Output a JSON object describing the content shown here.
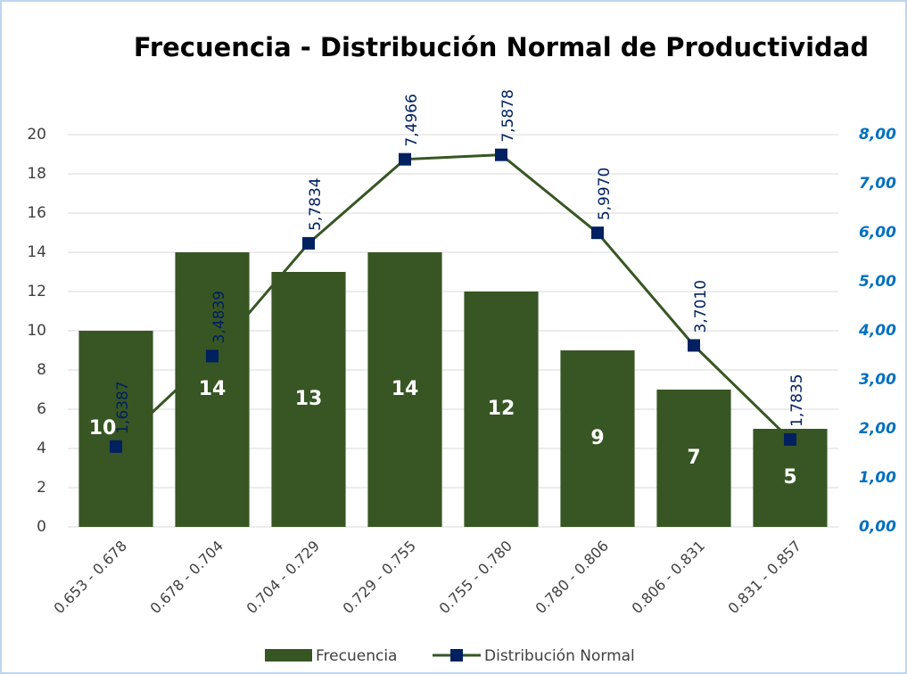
{
  "chart_data": {
    "type": "bar",
    "title": "Frecuencia - Distribución Normal de Productividad",
    "categories": [
      "0.653 - 0.678",
      "0.678 - 0.704",
      "0.704 - 0.729",
      "0.729 - 0.755",
      "0.755 - 0.780",
      "0.780 - 0.806",
      "0.806 - 0.831",
      "0.831 - 0.857"
    ],
    "series": [
      {
        "name": "Frecuencia",
        "type": "bar",
        "color": "#375623",
        "values": [
          10,
          14,
          13,
          14,
          12,
          9,
          7,
          5
        ]
      },
      {
        "name": "Distribución Normal",
        "type": "line",
        "axis": "y2",
        "color": "#375623",
        "marker_color": "#002060",
        "values": [
          1.6387,
          3.4839,
          5.7834,
          7.4966,
          7.5878,
          5.997,
          3.701,
          1.7835
        ],
        "value_labels": [
          "1,6387",
          "3,4839",
          "5,7834",
          "7,4966",
          "7,5878",
          "5,9970",
          "3,7010",
          "1,7835"
        ]
      }
    ],
    "ylim": [
      0,
      20
    ],
    "yticks": [
      0,
      2,
      4,
      6,
      8,
      10,
      12,
      14,
      16,
      18,
      20
    ],
    "y2lim": [
      0,
      8
    ],
    "y2ticks": [
      {
        "value": 0,
        "label": "0,00"
      },
      {
        "value": 1,
        "label": "1,00"
      },
      {
        "value": 2,
        "label": "2,00"
      },
      {
        "value": 3,
        "label": "3,00"
      },
      {
        "value": 4,
        "label": "4,00"
      },
      {
        "value": 5,
        "label": "5,00"
      },
      {
        "value": 6,
        "label": "6,00"
      },
      {
        "value": 7,
        "label": "7,00"
      },
      {
        "value": 8,
        "label": "8,00"
      }
    ],
    "grid": true,
    "legend": "bottom"
  }
}
